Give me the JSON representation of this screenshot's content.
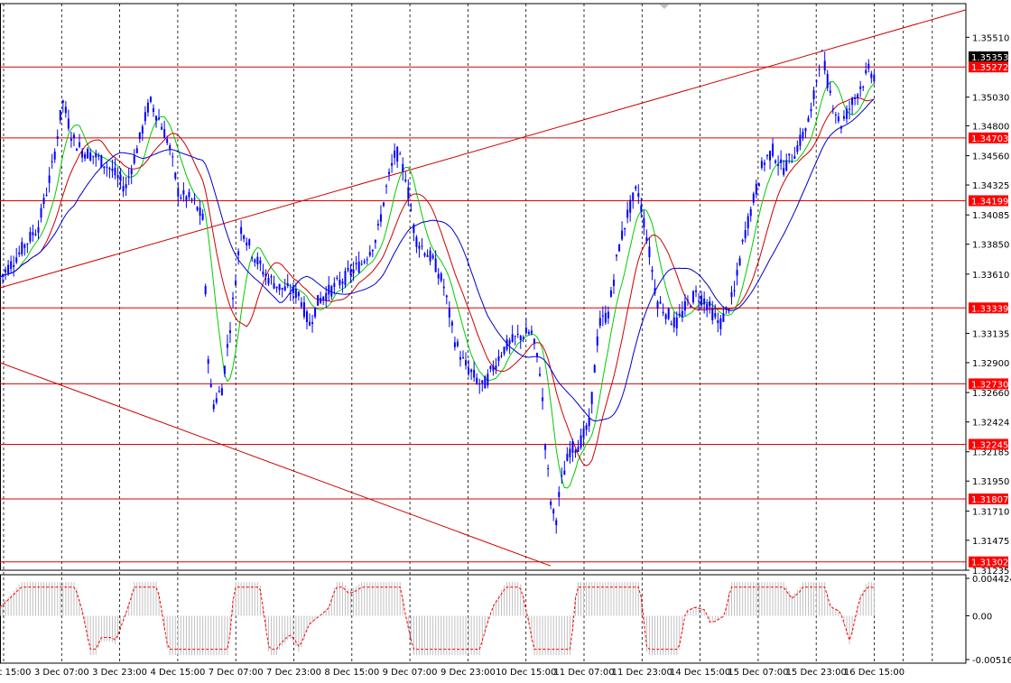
{
  "chart_data": [
    {
      "type": "candlestick",
      "y_ticks": [
        "1.35510",
        "1.35030",
        "1.34800",
        "1.34560",
        "1.34325",
        "1.34085",
        "1.33850",
        "1.33610",
        "1.33135",
        "1.32900",
        "1.32660",
        "1.32424",
        "1.32185",
        "1.31950",
        "1.31710",
        "1.31475",
        "1.31235"
      ],
      "ylim": [
        1.31235,
        1.3578
      ],
      "x_ticks": [
        "2 Dec 15:00",
        "3 Dec 07:00",
        "3 Dec 23:00",
        "4 Dec 15:00",
        "7 Dec 07:00",
        "7 Dec 23:00",
        "8 Dec 15:00",
        "9 Dec 07:00",
        "9 Dec 23:00",
        "10 Dec 15:00",
        "11 Dec 07:00",
        "11 Dec 23:00",
        "14 Dec 15:00",
        "15 Dec 07:00",
        "15 Dec 23:00",
        "16 Dec 15:00"
      ],
      "price_labels": [
        {
          "label": "1.35353",
          "value": 1.35353,
          "color": "#000000"
        },
        {
          "label": "1.35272",
          "value": 1.35272,
          "color": "#ff0000"
        },
        {
          "label": "1.34703",
          "value": 1.34703,
          "color": "#ff0000"
        },
        {
          "label": "1.34199",
          "value": 1.34199,
          "color": "#ff0000"
        },
        {
          "label": "1.33339",
          "value": 1.33339,
          "color": "#ff0000"
        },
        {
          "label": "1.32730",
          "value": 1.3273,
          "color": "#ff0000"
        },
        {
          "label": "1.32245",
          "value": 1.32245,
          "color": "#ff0000"
        },
        {
          "label": "1.31807",
          "value": 1.31807,
          "color": "#ff0000"
        },
        {
          "label": "1.31302",
          "value": 1.31302,
          "color": "#ff0000"
        }
      ],
      "horizontal_levels": [
        1.35272,
        1.34703,
        1.34199,
        1.33339,
        1.3273,
        1.32245,
        1.31807,
        1.31302
      ],
      "trendlines": [
        {
          "from": [
            0,
            1.335
          ],
          "to": [
            1.0,
            1.3573
          ],
          "color": "#cc0000"
        },
        {
          "from": [
            0,
            1.329
          ],
          "to": [
            0.57,
            1.3127
          ],
          "color": "#cc0000"
        }
      ],
      "moving_averages": [
        {
          "color": "#00cc00"
        },
        {
          "color": "#cc0000"
        },
        {
          "color": "#0000cc"
        }
      ],
      "candle_color": "#0000ff",
      "price_path": [
        [
          0,
          1.3358
        ],
        [
          0.02,
          1.3378
        ],
        [
          0.04,
          1.34
        ],
        [
          0.055,
          1.345
        ],
        [
          0.065,
          1.35
        ],
        [
          0.075,
          1.347
        ],
        [
          0.085,
          1.346
        ],
        [
          0.1,
          1.3455
        ],
        [
          0.115,
          1.3445
        ],
        [
          0.13,
          1.343
        ],
        [
          0.145,
          1.347
        ],
        [
          0.155,
          1.35
        ],
        [
          0.165,
          1.3485
        ],
        [
          0.175,
          1.3465
        ],
        [
          0.185,
          1.3425
        ],
        [
          0.2,
          1.342
        ],
        [
          0.21,
          1.3405
        ],
        [
          0.215,
          1.33
        ],
        [
          0.22,
          1.3255
        ],
        [
          0.23,
          1.327
        ],
        [
          0.24,
          1.333
        ],
        [
          0.25,
          1.34
        ],
        [
          0.26,
          1.338
        ],
        [
          0.275,
          1.336
        ],
        [
          0.29,
          1.335
        ],
        [
          0.31,
          1.3345
        ],
        [
          0.32,
          1.332
        ],
        [
          0.33,
          1.334
        ],
        [
          0.345,
          1.335
        ],
        [
          0.36,
          1.336
        ],
        [
          0.375,
          1.337
        ],
        [
          0.39,
          1.339
        ],
        [
          0.4,
          1.343
        ],
        [
          0.41,
          1.346
        ],
        [
          0.42,
          1.344
        ],
        [
          0.43,
          1.339
        ],
        [
          0.44,
          1.338
        ],
        [
          0.45,
          1.337
        ],
        [
          0.46,
          1.335
        ],
        [
          0.47,
          1.331
        ],
        [
          0.48,
          1.329
        ],
        [
          0.49,
          1.328
        ],
        [
          0.5,
          1.327
        ],
        [
          0.51,
          1.3285
        ],
        [
          0.52,
          1.33
        ],
        [
          0.535,
          1.331
        ],
        [
          0.55,
          1.3315
        ],
        [
          0.56,
          1.328
        ],
        [
          0.565,
          1.322
        ],
        [
          0.57,
          1.318
        ],
        [
          0.575,
          1.316
        ],
        [
          0.58,
          1.319
        ],
        [
          0.59,
          1.322
        ],
        [
          0.6,
          1.3225
        ],
        [
          0.61,
          1.324
        ],
        [
          0.62,
          1.332
        ],
        [
          0.63,
          1.333
        ],
        [
          0.64,
          1.338
        ],
        [
          0.65,
          1.341
        ],
        [
          0.66,
          1.343
        ],
        [
          0.67,
          1.339
        ],
        [
          0.68,
          1.334
        ],
        [
          0.69,
          1.333
        ],
        [
          0.7,
          1.332
        ],
        [
          0.71,
          1.3335
        ],
        [
          0.72,
          1.3345
        ],
        [
          0.73,
          1.334
        ],
        [
          0.745,
          1.332
        ],
        [
          0.76,
          1.3345
        ],
        [
          0.77,
          1.339
        ],
        [
          0.78,
          1.342
        ],
        [
          0.79,
          1.345
        ],
        [
          0.8,
          1.346
        ],
        [
          0.81,
          1.3445
        ],
        [
          0.82,
          1.3455
        ],
        [
          0.83,
          1.347
        ],
        [
          0.84,
          1.349
        ],
        [
          0.85,
          1.354
        ],
        [
          0.86,
          1.3505
        ],
        [
          0.87,
          1.348
        ],
        [
          0.88,
          1.3495
        ],
        [
          0.89,
          1.351
        ],
        [
          0.9,
          1.3525
        ],
        [
          0.905,
          1.352
        ]
      ],
      "volume_panel": {
        "y_ticks": [
          "0.004424",
          "0.00",
          "-0.005161"
        ],
        "ylim": [
          -0.005161,
          0.004424
        ],
        "bar_color": "#c0c0c0",
        "signal_color": "#ff0000"
      }
    }
  ]
}
